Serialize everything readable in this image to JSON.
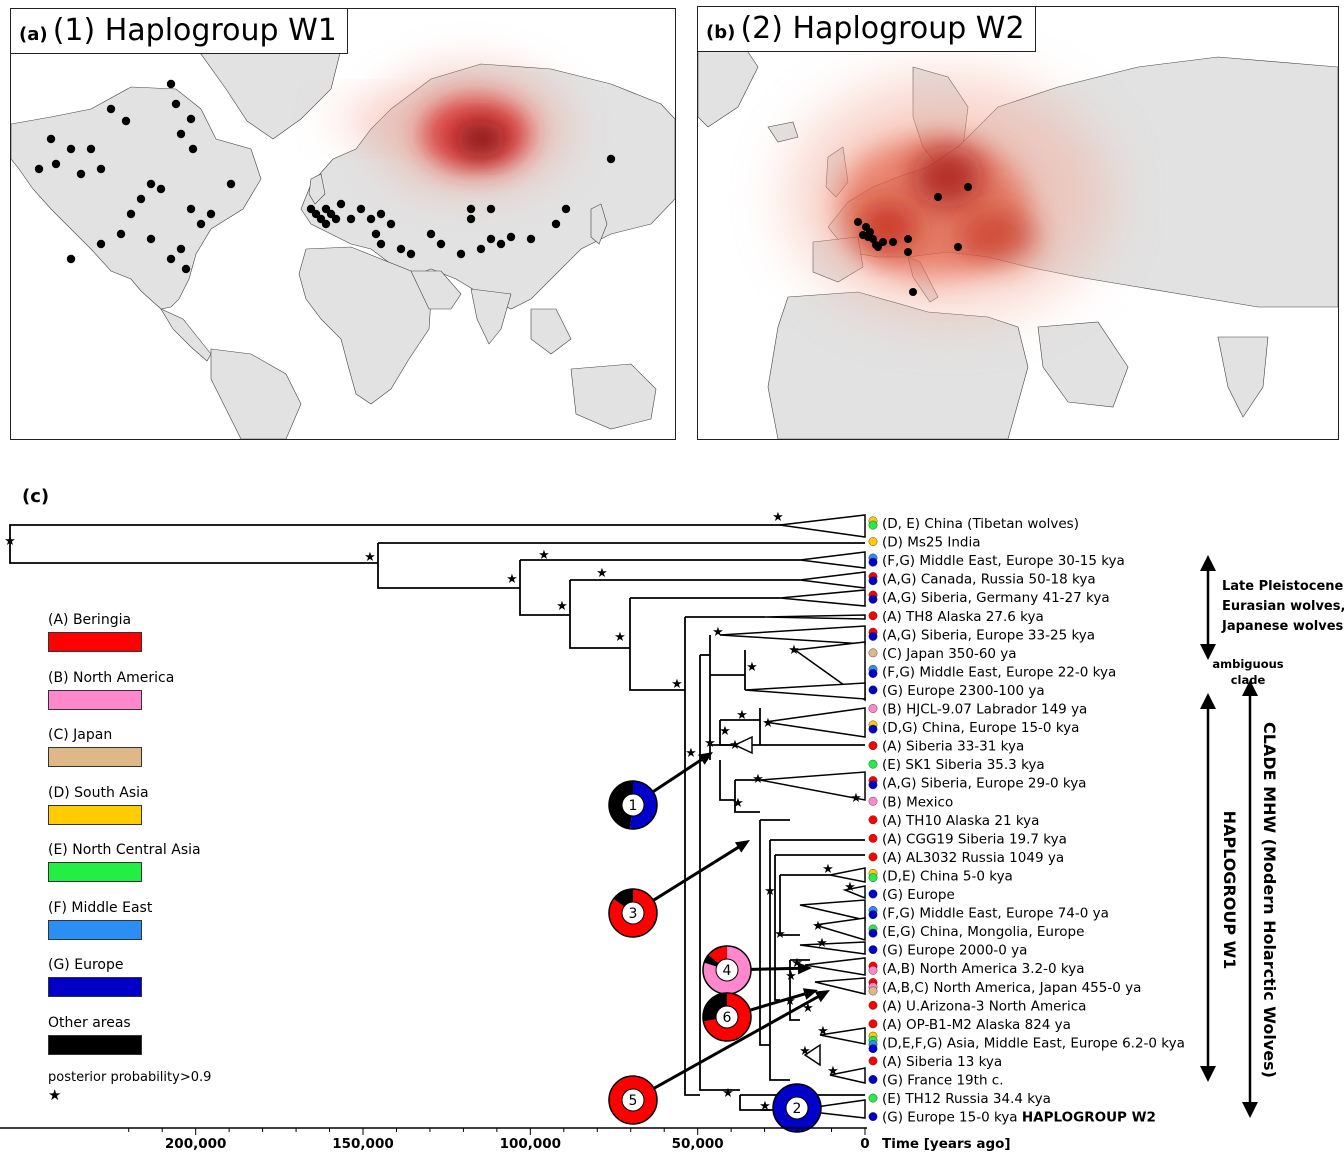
{
  "panel_a": {
    "label": "(a)",
    "title": "(1) Haplogroup W1"
  },
  "panel_b": {
    "label": "(b)",
    "title": "(2) Haplogroup W2"
  },
  "panel_c": {
    "label": "(c)"
  },
  "colors": {
    "A": "#ff0000",
    "B": "#ff88cc",
    "C": "#deb887",
    "D": "#ffcc00",
    "E": "#22ee44",
    "F": "#2a8ef5",
    "G": "#0000c8",
    "other": "#000000",
    "land": "#e2e2e2",
    "heat": "#d62020"
  },
  "legend": [
    {
      "key": "A",
      "label": "(A) Beringia"
    },
    {
      "key": "B",
      "label": "(B) North America"
    },
    {
      "key": "C",
      "label": "(C) Japan"
    },
    {
      "key": "D",
      "label": "(D) South Asia"
    },
    {
      "key": "E",
      "label": "(E) North Central Asia"
    },
    {
      "key": "F",
      "label": "(F) Middle East"
    },
    {
      "key": "G",
      "label": "(G) Europe"
    },
    {
      "key": "other",
      "label": "Other areas"
    }
  ],
  "legend_star": "posterior probability>0.9",
  "tips": [
    {
      "label": "(D, E) China (Tibetan wolves)",
      "regions": [
        "D",
        "E"
      ]
    },
    {
      "label": "(D) Ms25 India",
      "regions": [
        "D"
      ]
    },
    {
      "label": "(F,G) Middle East, Europe 30-15 kya",
      "regions": [
        "F",
        "G"
      ]
    },
    {
      "label": "(A,G) Canada, Russia 50-18 kya",
      "regions": [
        "A",
        "G"
      ]
    },
    {
      "label": "(A,G) Siberia, Germany 41-27 kya",
      "regions": [
        "A",
        "G"
      ]
    },
    {
      "label": "(A) TH8 Alaska 27.6 kya",
      "regions": [
        "A"
      ]
    },
    {
      "label": "(A,G) Siberia, Europe 33-25 kya",
      "regions": [
        "A",
        "G"
      ]
    },
    {
      "label": "(C) Japan 350-60 ya",
      "regions": [
        "C"
      ]
    },
    {
      "label": "(F,G) Middle East, Europe 22-0 kya",
      "regions": [
        "F",
        "G"
      ]
    },
    {
      "label": "(G) Europe 2300-100 ya",
      "regions": [
        "G"
      ]
    },
    {
      "label": "(B) HJCL-9.07 Labrador 149 ya",
      "regions": [
        "B"
      ]
    },
    {
      "label": "(D,G) China, Europe 15-0 kya",
      "regions": [
        "D",
        "G"
      ]
    },
    {
      "label": "(A) Siberia 33-31 kya",
      "regions": [
        "A"
      ]
    },
    {
      "label": "(E) SK1 Siberia 35.3 kya",
      "regions": [
        "E"
      ]
    },
    {
      "label": "(A,G) Siberia, Europe 29-0 kya",
      "regions": [
        "A",
        "G"
      ]
    },
    {
      "label": "(B) Mexico",
      "regions": [
        "B"
      ]
    },
    {
      "label": "(A) TH10 Alaska 21 kya",
      "regions": [
        "A"
      ]
    },
    {
      "label": "(A) CGG19 Siberia 19.7 kya",
      "regions": [
        "A"
      ]
    },
    {
      "label": "(A) AL3032 Russia 1049 ya",
      "regions": [
        "A"
      ]
    },
    {
      "label": "(D,E) China 5-0 kya",
      "regions": [
        "D",
        "E"
      ]
    },
    {
      "label": "(G) Europe",
      "regions": [
        "G"
      ]
    },
    {
      "label": "(F,G) Middle East, Europe 74-0 ya",
      "regions": [
        "F",
        "G"
      ]
    },
    {
      "label": "(E,G) China, Mongolia, Europe",
      "regions": [
        "E",
        "G"
      ]
    },
    {
      "label": "(G) Europe 2000-0 ya",
      "regions": [
        "G"
      ]
    },
    {
      "label": "(A,B) North America 3.2-0 kya",
      "regions": [
        "A",
        "B"
      ]
    },
    {
      "label": "(A,B,C) North America, Japan 455-0 ya",
      "regions": [
        "A",
        "B",
        "C"
      ]
    },
    {
      "label": "(A) U.Arizona-3 North America",
      "regions": [
        "A"
      ]
    },
    {
      "label": "(A) OP-B1-M2 Alaska 824 ya",
      "regions": [
        "A"
      ]
    },
    {
      "label": "(D,E,F,G) Asia, Middle East, Europe 6.2-0 kya",
      "regions": [
        "D",
        "E",
        "F",
        "G"
      ]
    },
    {
      "label": "(A) Siberia 13 kya",
      "regions": [
        "A"
      ]
    },
    {
      "label": "(G) France 19th c.",
      "regions": [
        "G"
      ]
    },
    {
      "label": "(E) TH12 Russia 34.4 kya",
      "regions": [
        "E"
      ]
    },
    {
      "label": "(G) Europe 15-0 kya",
      "regions": [
        "G"
      ],
      "suffix": "HAPLOGROUP W2"
    }
  ],
  "pies": [
    {
      "num": "1",
      "slices": [
        [
          "G",
          0.52
        ],
        [
          "other",
          0.48
        ]
      ]
    },
    {
      "num": "2",
      "slices": [
        [
          "G",
          1.0
        ]
      ]
    },
    {
      "num": "3",
      "slices": [
        [
          "A",
          0.85
        ],
        [
          "other",
          0.15
        ]
      ]
    },
    {
      "num": "4",
      "slices": [
        [
          "B",
          0.8
        ],
        [
          "other",
          0.06
        ],
        [
          "A",
          0.14
        ]
      ]
    },
    {
      "num": "5",
      "slices": [
        [
          "A",
          1.0
        ]
      ]
    },
    {
      "num": "6",
      "slices": [
        [
          "A",
          0.72
        ],
        [
          "other",
          0.28
        ]
      ]
    }
  ],
  "brackets": {
    "late": "Late Pleistocene Eurasian wolves, Japanese wolves",
    "late_lines": [
      "Late Pleistocene",
      "Eurasian wolves,",
      "Japanese wolves"
    ],
    "ambiguous": "ambiguous clade",
    "ambiguous_lines": [
      "ambiguous",
      "clade"
    ],
    "w1": "HAPLOGROUP W1",
    "mhw": "CLADE MHW (Modern Holarctic Wolves)"
  },
  "axis": {
    "ticks": [
      200000,
      150000,
      100000,
      50000,
      0
    ],
    "tick_labels": [
      "200,000",
      "150,000",
      "100,000",
      "50,000",
      "0"
    ],
    "title": "Time [years ago]"
  }
}
